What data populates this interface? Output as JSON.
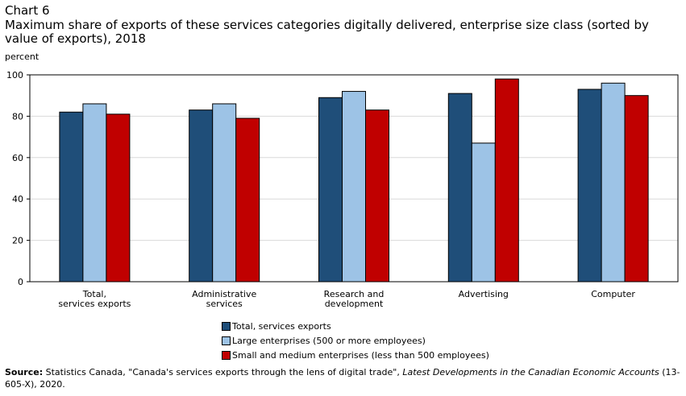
{
  "chart_number": "Chart 6",
  "title": "Maximum share of exports of these services categories digitally delivered, enterprise size class (sorted by value of exports), 2018",
  "source": {
    "label": "Source:",
    "text_before": "Statistics Canada, \"Canada's services exports through the lens of digital trade\",",
    "italic": "Latest Developments in the Canadian Economic Accounts",
    "text_after": "(13-605-X), 2020."
  },
  "chart_data": {
    "type": "bar",
    "ylabel": "percent",
    "xlabel": "",
    "ylim": [
      0,
      100
    ],
    "yticks": [
      0,
      20,
      40,
      60,
      80,
      100
    ],
    "grid": true,
    "legend_position": "bottom",
    "categories": [
      [
        "Total,",
        "services exports"
      ],
      [
        "Administrative",
        "services"
      ],
      [
        "Research and",
        "development"
      ],
      [
        "Advertising"
      ],
      [
        "Computer"
      ]
    ],
    "series": [
      {
        "name": "Total, services exports",
        "color": "#1f4e79",
        "values": [
          82,
          83,
          89,
          91,
          93
        ]
      },
      {
        "name": "Large enterprises (500 or more employees)",
        "color": "#9dc3e6",
        "values": [
          86,
          86,
          92,
          67,
          96
        ]
      },
      {
        "name": "Small and medium enterprises (less than 500 employees)",
        "color": "#c00000",
        "values": [
          81,
          79,
          83,
          98,
          90
        ]
      }
    ]
  }
}
